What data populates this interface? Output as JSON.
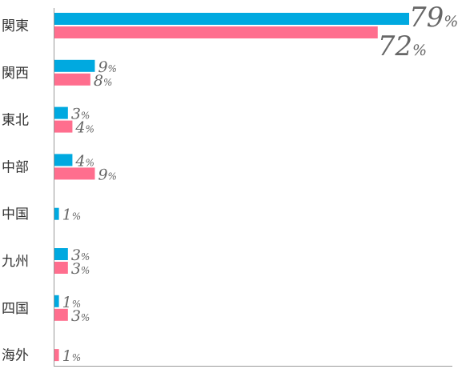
{
  "chart_data": {
    "type": "bar",
    "orientation": "horizontal",
    "categories": [
      "関東",
      "関西",
      "東北",
      "中部",
      "中国",
      "九州",
      "四国",
      "海外"
    ],
    "series": [
      {
        "color": "#00a9e0",
        "values": [
          79,
          9,
          3,
          4,
          1,
          3,
          1,
          null
        ]
      },
      {
        "color": "#ff6e8e",
        "values": [
          72,
          8,
          4,
          9,
          null,
          3,
          3,
          1
        ]
      }
    ],
    "value_suffix": "%",
    "xlim": [
      0,
      89
    ],
    "grid": false,
    "legend": "none"
  }
}
